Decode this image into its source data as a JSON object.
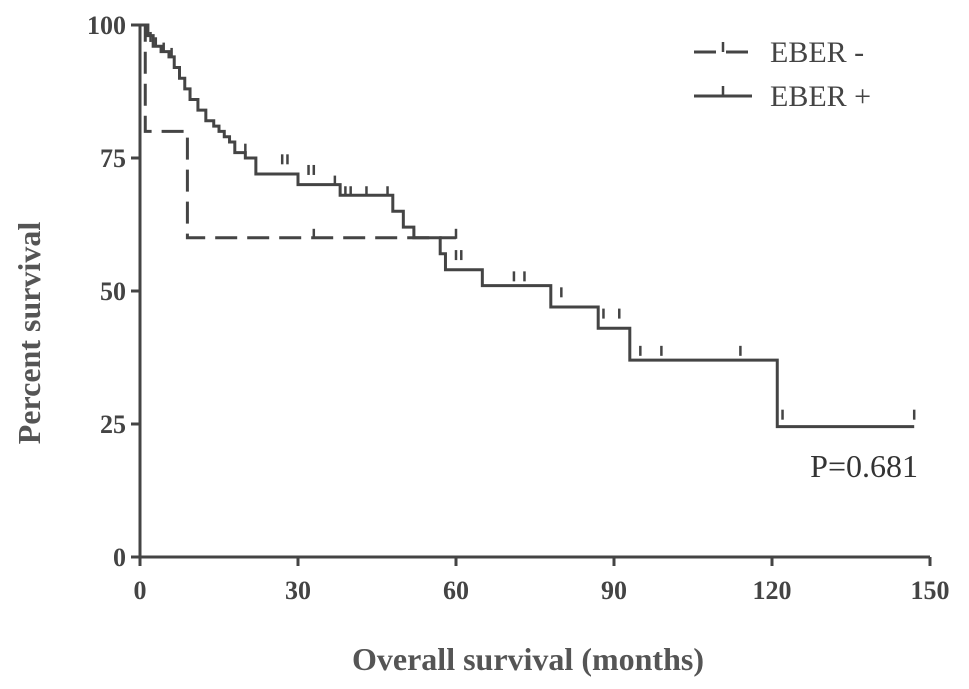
{
  "chart_data": {
    "type": "line",
    "subtype": "kaplan-meier",
    "xlabel": "Overall survival  (months)",
    "ylabel": "Percent survival",
    "xlim": [
      0,
      150
    ],
    "ylim": [
      0,
      100
    ],
    "xticks": [
      0,
      30,
      60,
      90,
      120,
      150
    ],
    "yticks": [
      0,
      25,
      50,
      75,
      100
    ],
    "grid": false,
    "legend_position": "top-right",
    "annotation": "P=0.681",
    "series": [
      {
        "name": "EBER -",
        "dash": "dashed",
        "steps": [
          [
            0,
            100
          ],
          [
            1,
            80
          ],
          [
            9,
            60
          ],
          [
            60,
            60
          ]
        ],
        "censored": [
          [
            33,
            60
          ],
          [
            60,
            60
          ]
        ]
      },
      {
        "name": "EBER +",
        "dash": "solid",
        "steps": [
          [
            0,
            100
          ],
          [
            1.5,
            98
          ],
          [
            2.5,
            96
          ],
          [
            4,
            95
          ],
          [
            5.5,
            94
          ],
          [
            6.5,
            92
          ],
          [
            7.5,
            90
          ],
          [
            8.5,
            88
          ],
          [
            9.5,
            86
          ],
          [
            11,
            84
          ],
          [
            12.5,
            82
          ],
          [
            14,
            81
          ],
          [
            15,
            80
          ],
          [
            16,
            79
          ],
          [
            17,
            78
          ],
          [
            18,
            76
          ],
          [
            20,
            75
          ],
          [
            22,
            72
          ],
          [
            30,
            70
          ],
          [
            38,
            68
          ],
          [
            48,
            65
          ],
          [
            50,
            62
          ],
          [
            52,
            60
          ],
          [
            57,
            57
          ],
          [
            58,
            54
          ],
          [
            65,
            51
          ],
          [
            78,
            47
          ],
          [
            87,
            43
          ],
          [
            93,
            37
          ],
          [
            121,
            24.5
          ],
          [
            147,
            24.5
          ]
        ],
        "censored": [
          [
            2,
            97
          ],
          [
            3,
            96
          ],
          [
            4.5,
            95
          ],
          [
            6,
            94
          ],
          [
            20,
            76
          ],
          [
            27,
            74
          ],
          [
            28,
            74
          ],
          [
            32,
            72
          ],
          [
            33,
            72
          ],
          [
            37,
            70
          ],
          [
            39,
            68
          ],
          [
            40,
            68
          ],
          [
            43,
            68
          ],
          [
            47,
            68
          ],
          [
            52,
            60
          ],
          [
            60,
            56
          ],
          [
            61,
            56
          ],
          [
            71,
            52
          ],
          [
            73,
            52
          ],
          [
            80,
            49
          ],
          [
            88,
            45
          ],
          [
            91,
            45
          ],
          [
            95,
            38
          ],
          [
            99,
            38
          ],
          [
            114,
            38
          ],
          [
            122,
            26
          ],
          [
            147,
            26
          ]
        ]
      }
    ]
  }
}
